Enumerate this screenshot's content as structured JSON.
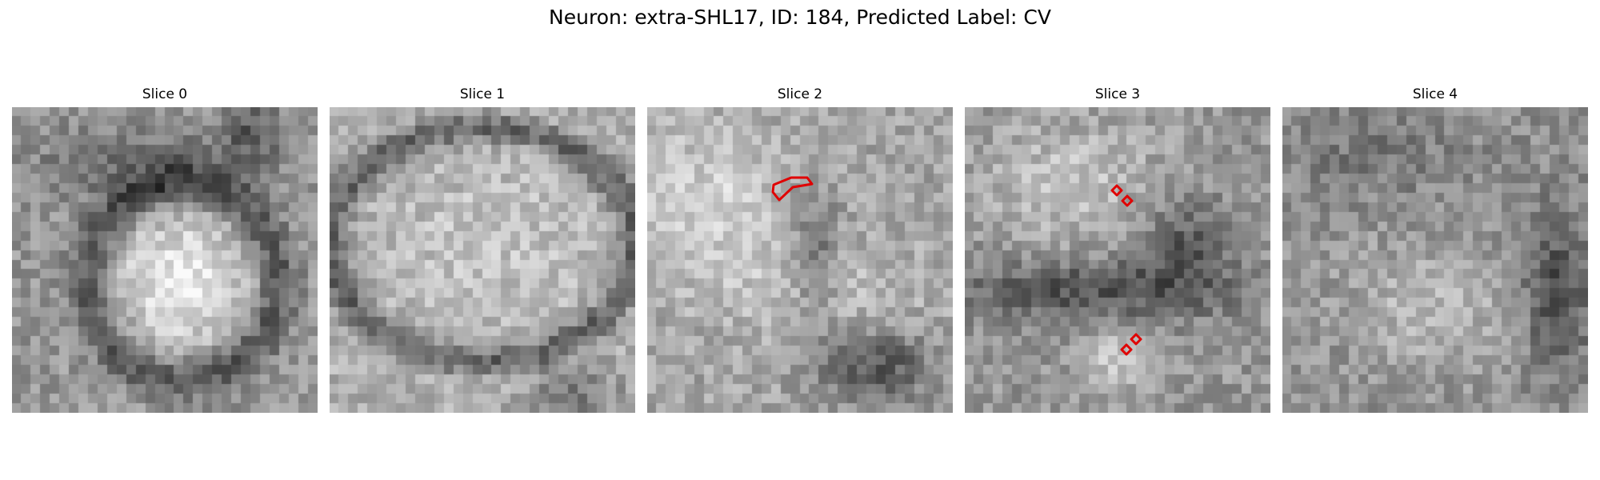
{
  "figure": {
    "title": "Neuron: extra-SHL17, ID: 184, Predicted Label: CV",
    "overlay_color": "#e00000",
    "colormap": "gray",
    "panels": [
      {
        "label": "Slice 0",
        "contour_count": 0
      },
      {
        "label": "Slice 1",
        "contour_count": 0
      },
      {
        "label": "Slice 2",
        "contour_count": 1
      },
      {
        "label": "Slice 3",
        "contour_count": 4
      },
      {
        "label": "Slice 4",
        "contour_count": 0
      }
    ]
  }
}
